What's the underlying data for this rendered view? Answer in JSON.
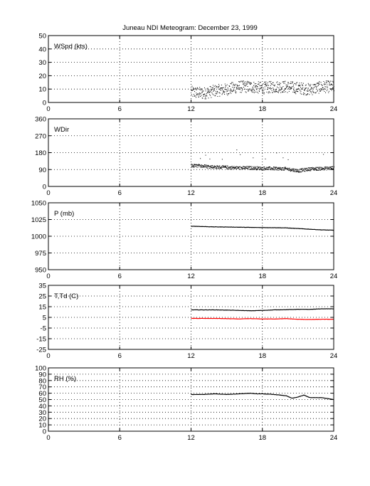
{
  "title": "Juneau NDI Meteogram:   December 23, 1999",
  "chart_data": [
    {
      "type": "scatter",
      "label": "WSpd (kts)",
      "xlim": [
        0,
        24
      ],
      "xticks": [
        0,
        6,
        12,
        18,
        24
      ],
      "ylim": [
        0,
        50
      ],
      "yticks": [
        0,
        10,
        20,
        30,
        40,
        50
      ],
      "grid": true,
      "series": [
        {
          "color": "#000000",
          "x_range": [
            12,
            24
          ],
          "typical_range": [
            3,
            19
          ],
          "x": [
            12,
            13,
            14,
            15,
            16,
            17,
            18,
            19,
            20,
            21,
            22,
            23,
            24
          ],
          "y": [
            8,
            7,
            9,
            10,
            12,
            12,
            11,
            12,
            12,
            11,
            10,
            12,
            12
          ]
        }
      ]
    },
    {
      "type": "scatter",
      "label": "WDir",
      "xlim": [
        0,
        24
      ],
      "xticks": [
        0,
        6,
        12,
        18,
        24
      ],
      "ylim": [
        0,
        360
      ],
      "yticks": [
        0,
        90,
        180,
        270,
        360
      ],
      "grid": true,
      "series": [
        {
          "color": "#000000",
          "x_range": [
            12,
            24
          ],
          "x": [
            12,
            13,
            14,
            15,
            16,
            17,
            18,
            19,
            20,
            21,
            22,
            23,
            24
          ],
          "y": [
            112,
            110,
            105,
            103,
            100,
            100,
            98,
            97,
            95,
            85,
            95,
            97,
            100
          ]
        }
      ]
    },
    {
      "type": "line",
      "label": "P (mb)",
      "xlim": [
        0,
        24
      ],
      "xticks": [
        0,
        6,
        12,
        18,
        24
      ],
      "ylim": [
        950,
        1050
      ],
      "yticks": [
        950,
        975,
        1000,
        1025,
        1050
      ],
      "grid": true,
      "series": [
        {
          "color": "#000000",
          "x": [
            12,
            13,
            14,
            15,
            16,
            17,
            18,
            19,
            20,
            21,
            22,
            23,
            24
          ],
          "y": [
            1015,
            1014.5,
            1014,
            1013.8,
            1013.5,
            1013.2,
            1013,
            1012.8,
            1012.5,
            1011.5,
            1010.5,
            1009.5,
            1009
          ]
        }
      ]
    },
    {
      "type": "line",
      "label": "T,Td (C)",
      "xlim": [
        0,
        24
      ],
      "xticks": [
        0,
        6,
        12,
        18,
        24
      ],
      "ylim": [
        -25,
        35
      ],
      "yticks": [
        -25,
        -15,
        -5,
        5,
        15,
        25,
        35
      ],
      "grid": true,
      "series": [
        {
          "color": "#000000",
          "x": [
            12,
            13,
            14,
            15,
            16,
            17,
            18,
            19,
            20,
            21,
            22,
            23,
            24
          ],
          "y": [
            12,
            12,
            12,
            11.8,
            11.5,
            11.2,
            11.5,
            12,
            12.2,
            12.5,
            12.5,
            13,
            13
          ]
        },
        {
          "color": "#ff0000",
          "x": [
            12,
            13,
            14,
            15,
            16,
            17,
            18,
            19,
            20,
            21,
            22,
            23,
            24
          ],
          "y": [
            4,
            4,
            4,
            3.8,
            3.5,
            3.8,
            3.5,
            3.5,
            3.8,
            3.2,
            3.0,
            3.2,
            3.2
          ]
        }
      ]
    },
    {
      "type": "line",
      "label": "RH (%)",
      "xlim": [
        0,
        24
      ],
      "xticks": [
        0,
        6,
        12,
        18,
        24
      ],
      "ylim": [
        0,
        100
      ],
      "yticks": [
        0,
        10,
        20,
        30,
        40,
        50,
        60,
        70,
        80,
        90,
        100
      ],
      "grid": true,
      "series": [
        {
          "color": "#000000",
          "x": [
            12,
            13,
            14,
            15,
            16,
            17,
            17.5,
            18,
            19,
            20,
            20.5,
            21,
            21.5,
            22,
            23,
            24
          ],
          "y": [
            58,
            58,
            59,
            58,
            59,
            60,
            59,
            59,
            58,
            56,
            52,
            54,
            57,
            53,
            53,
            50
          ]
        }
      ]
    }
  ]
}
